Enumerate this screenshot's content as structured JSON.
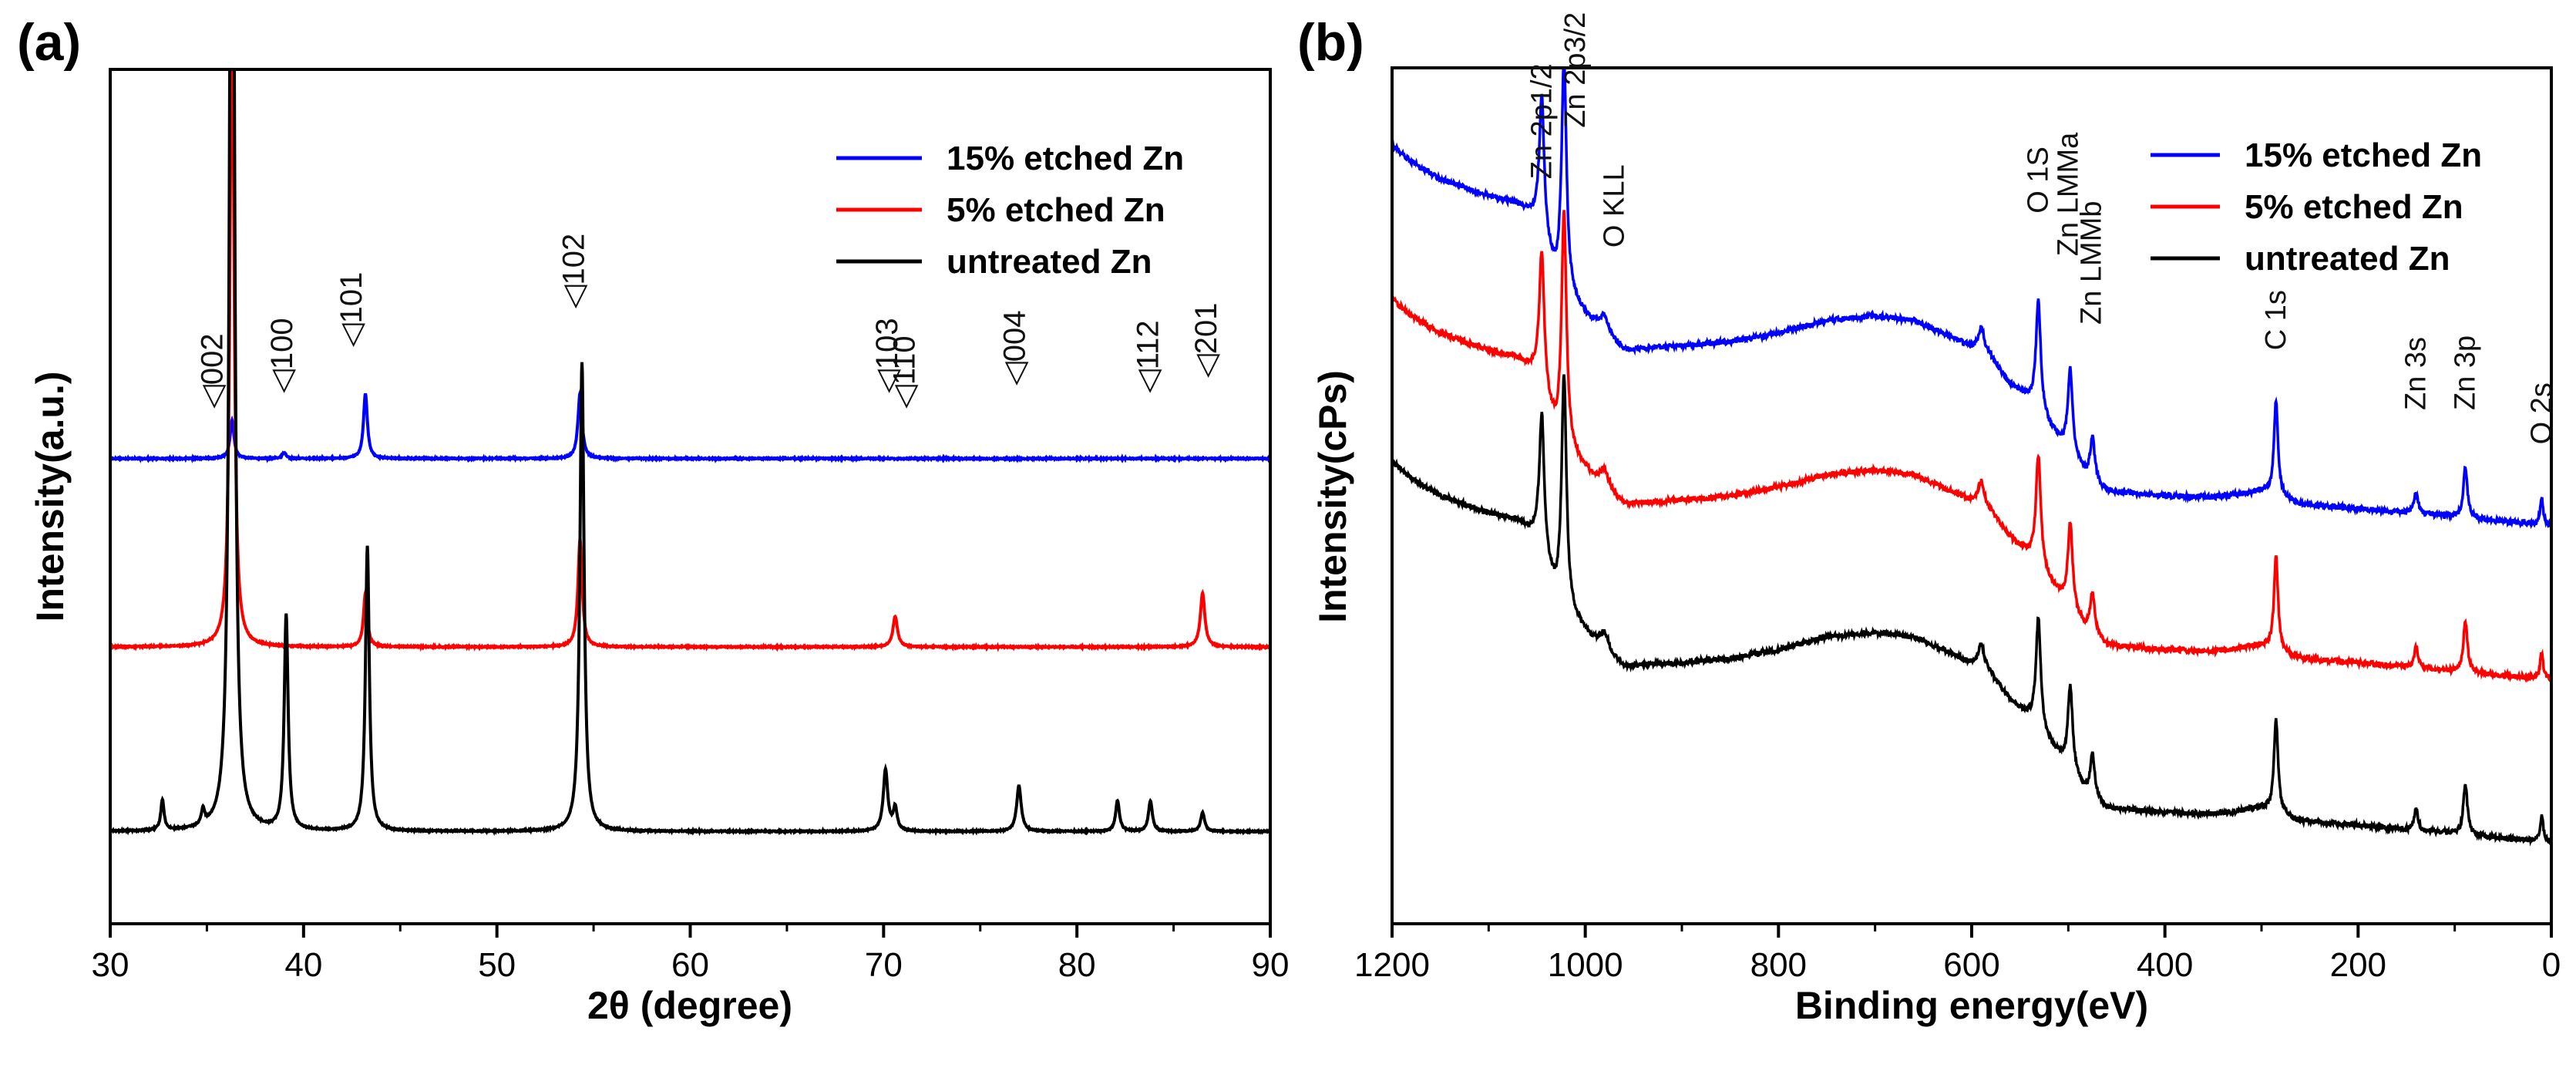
{
  "chart_data": [
    {
      "type": "line",
      "panel_label": "(a)",
      "title": "",
      "xlabel": "2θ (degree)",
      "ylabel": "Intensity(a.u.)",
      "xlim": [
        30,
        90
      ],
      "xticks": [
        "30",
        "40",
        "50",
        "60",
        "70",
        "80",
        "90"
      ],
      "yticks_shown": false,
      "legend_position": "top-right",
      "series": [
        {
          "name": "15% etched Zn",
          "color": "#0000ff",
          "baseline": 0.605,
          "noise": 0.0015,
          "peaks": [
            {
              "x": 36.3,
              "h": 0.05,
              "w": 0.12
            },
            {
              "x": 39.0,
              "h": 0.008,
              "w": 0.12
            },
            {
              "x": 43.2,
              "h": 0.085,
              "w": 0.12
            },
            {
              "x": 54.3,
              "h": 0.085,
              "w": 0.13
            }
          ]
        },
        {
          "name": "5% etched Zn",
          "color": "#ff0000",
          "baseline": 0.36,
          "noise": 0.0015,
          "peaks": [
            {
              "x": 36.3,
              "h": 0.9,
              "w": 0.12
            },
            {
              "x": 43.2,
              "h": 0.07,
              "w": 0.12
            },
            {
              "x": 54.3,
              "h": 0.14,
              "w": 0.13
            },
            {
              "x": 70.6,
              "h": 0.04,
              "w": 0.14
            },
            {
              "x": 86.5,
              "h": 0.07,
              "w": 0.14
            }
          ]
        },
        {
          "name": "untreated Zn",
          "color": "#000000",
          "baseline": 0.12,
          "noise": 0.0015,
          "peaks": [
            {
              "x": 32.7,
              "h": 0.04,
              "w": 0.1
            },
            {
              "x": 34.8,
              "h": 0.02,
              "w": 0.1
            },
            {
              "x": 36.3,
              "h": 1.98,
              "w": 0.12
            },
            {
              "x": 39.1,
              "h": 0.28,
              "w": 0.12
            },
            {
              "x": 43.3,
              "h": 0.37,
              "w": 0.12
            },
            {
              "x": 54.4,
              "h": 0.61,
              "w": 0.13
            },
            {
              "x": 70.1,
              "h": 0.08,
              "w": 0.14
            },
            {
              "x": 70.6,
              "h": 0.03,
              "w": 0.12
            },
            {
              "x": 77.0,
              "h": 0.06,
              "w": 0.14
            },
            {
              "x": 82.1,
              "h": 0.04,
              "w": 0.12
            },
            {
              "x": 83.8,
              "h": 0.04,
              "w": 0.12
            },
            {
              "x": 86.5,
              "h": 0.025,
              "w": 0.12
            }
          ]
        }
      ],
      "annotations": [
        {
          "text": "◁002",
          "x": 35.8,
          "y": 0.67
        },
        {
          "text": "◁100",
          "x": 39.4,
          "y": 0.69
        },
        {
          "text": "◁101",
          "x": 43.0,
          "y": 0.75
        },
        {
          "text": "◁102",
          "x": 54.5,
          "y": 0.8
        },
        {
          "text": "◁103",
          "x": 70.7,
          "y": 0.69
        },
        {
          "text": "◁110",
          "x": 71.6,
          "y": 0.67
        },
        {
          "text": "◁004",
          "x": 77.3,
          "y": 0.7
        },
        {
          "text": "◁112",
          "x": 84.2,
          "y": 0.69
        },
        {
          "text": "◁201",
          "x": 87.2,
          "y": 0.71
        }
      ]
    },
    {
      "type": "line",
      "panel_label": "(b)",
      "title": "",
      "xlabel": "Binding energy(eV)",
      "ylabel": "Intensity(cPs)",
      "xlim": [
        1200,
        0
      ],
      "xticks": [
        "1200",
        "1000",
        "800",
        "600",
        "400",
        "200",
        "0"
      ],
      "yticks_shown": false,
      "legend_position": "top-right",
      "series": [
        {
          "name": "15% etched Zn",
          "color": "#0000ff",
          "offset": 0.18,
          "peak_scale": 1.0
        },
        {
          "name": "5% etched Zn",
          "color": "#ff0000",
          "offset": -0.0,
          "peak_scale": 1.0
        },
        {
          "name": "untreated Zn",
          "color": "#000000",
          "offset": -0.19,
          "peak_scale": 1.0
        }
      ],
      "background_profile": [
        [
          1200,
          0.78
        ],
        [
          1180,
          0.76
        ],
        [
          1150,
          0.74
        ],
        [
          1100,
          0.72
        ],
        [
          1070,
          0.71
        ],
        [
          1050,
          0.69
        ],
        [
          1030,
          0.62
        ],
        [
          1000,
          0.58
        ],
        [
          980,
          0.56
        ],
        [
          960,
          0.54
        ],
        [
          900,
          0.545
        ],
        [
          850,
          0.55
        ],
        [
          800,
          0.56
        ],
        [
          750,
          0.575
        ],
        [
          700,
          0.58
        ],
        [
          660,
          0.575
        ],
        [
          620,
          0.555
        ],
        [
          580,
          0.53
        ],
        [
          560,
          0.5
        ],
        [
          540,
          0.48
        ],
        [
          520,
          0.45
        ],
        [
          500,
          0.42
        ],
        [
          480,
          0.39
        ],
        [
          460,
          0.375
        ],
        [
          400,
          0.37
        ],
        [
          350,
          0.368
        ],
        [
          300,
          0.375
        ],
        [
          285,
          0.37
        ],
        [
          260,
          0.36
        ],
        [
          200,
          0.355
        ],
        [
          150,
          0.35
        ],
        [
          100,
          0.345
        ],
        [
          50,
          0.34
        ],
        [
          0,
          0.335
        ]
      ],
      "peaks": [
        {
          "x": 1045,
          "h": 0.16,
          "w": 3
        },
        {
          "x": 1022,
          "h": 0.27,
          "w": 3
        },
        {
          "x": 980,
          "h": 0.02,
          "w": 5
        },
        {
          "x": 590,
          "h": 0.03,
          "w": 4
        },
        {
          "x": 531,
          "h": 0.13,
          "w": 3
        },
        {
          "x": 498,
          "h": 0.1,
          "w": 3
        },
        {
          "x": 475,
          "h": 0.05,
          "w": 3
        },
        {
          "x": 285,
          "h": 0.11,
          "w": 2.5
        },
        {
          "x": 140,
          "h": 0.025,
          "w": 2.5
        },
        {
          "x": 89,
          "h": 0.06,
          "w": 2.5
        },
        {
          "x": 10,
          "h": 0.03,
          "w": 2
        }
      ],
      "annotations": [
        {
          "text": "Zn 2p1/2",
          "x": 1045,
          "y": 0.87
        },
        {
          "text": "Zn 2p3/2",
          "x": 1010,
          "y": 0.93
        },
        {
          "text": "O KLL",
          "x": 970,
          "y": 0.79
        },
        {
          "text": "O 1S",
          "x": 531,
          "y": 0.83
        },
        {
          "text": "Zn LMMa",
          "x": 500,
          "y": 0.78
        },
        {
          "text": "Zn LMMb",
          "x": 476,
          "y": 0.7
        },
        {
          "text": "C 1s",
          "x": 285,
          "y": 0.67
        },
        {
          "text": "Zn 3s",
          "x": 140,
          "y": 0.6
        },
        {
          "text": "Zn 3p",
          "x": 89,
          "y": 0.6
        },
        {
          "text": "O 2s",
          "x": 10,
          "y": 0.56
        }
      ]
    }
  ]
}
